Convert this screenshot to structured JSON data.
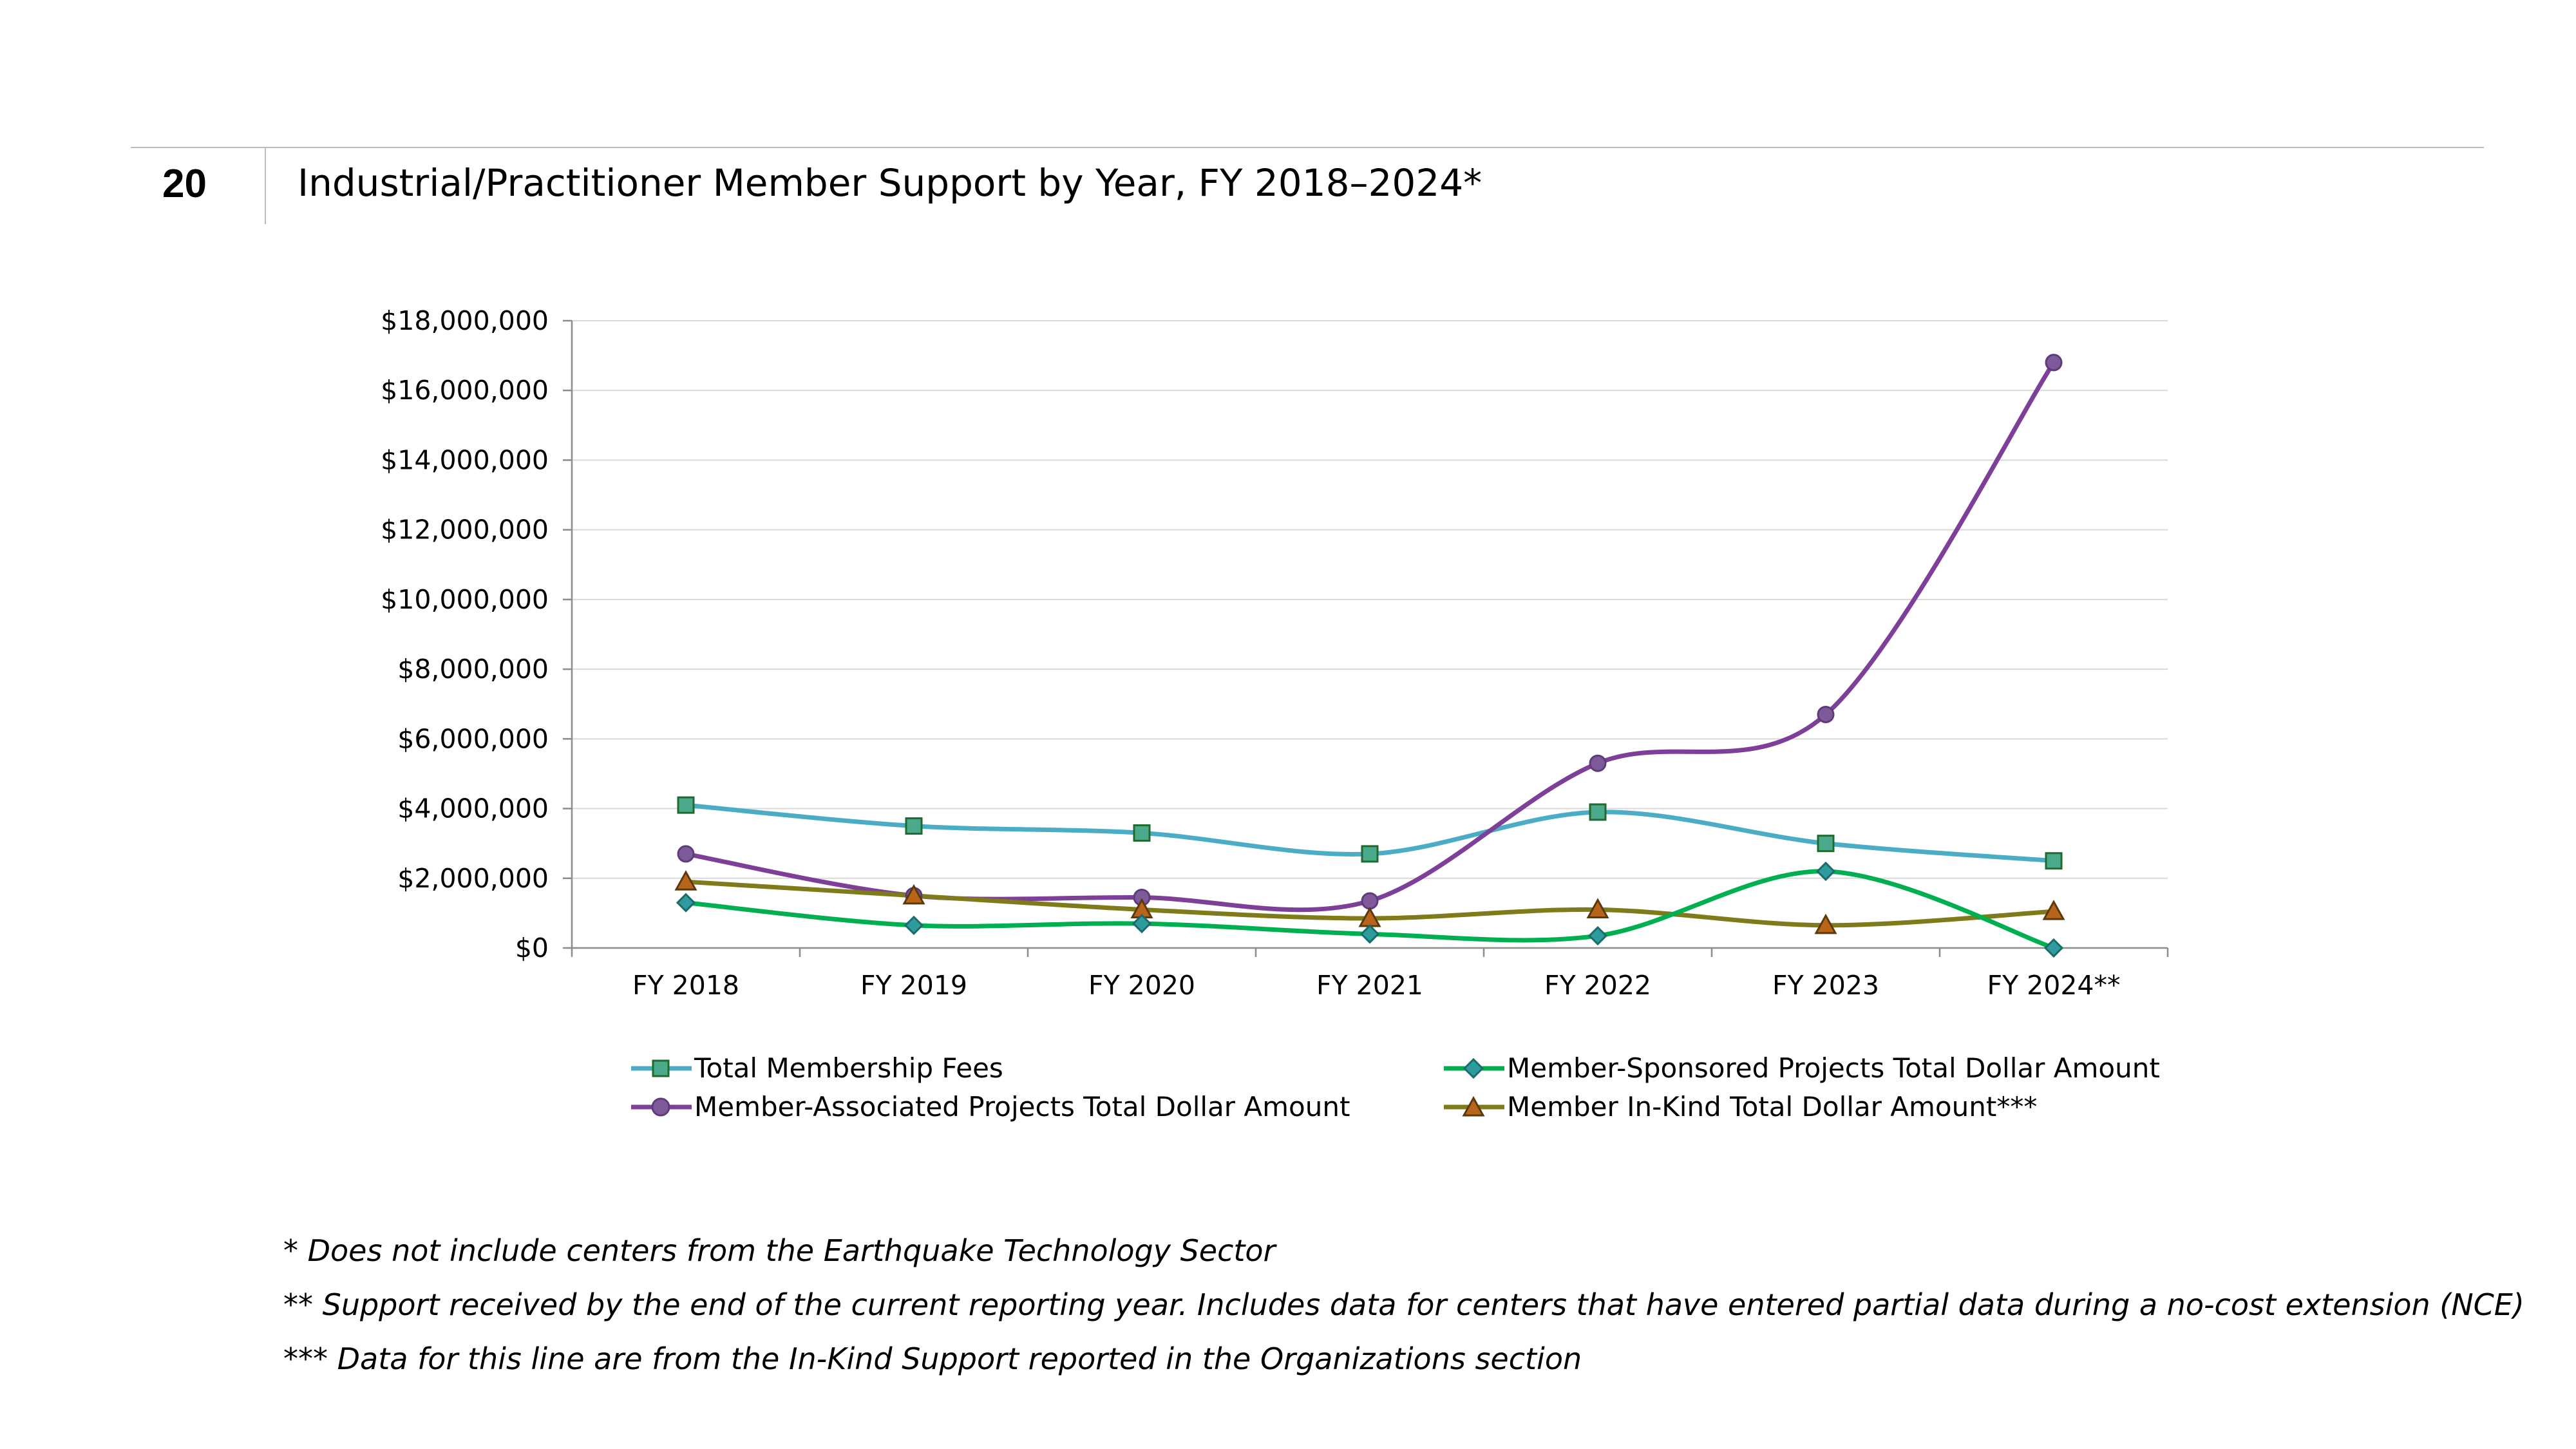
{
  "figure": {
    "number": "20",
    "title": "Industrial/Practitioner Member Support by Year, FY 2018–2024*"
  },
  "chart_data": {
    "type": "line",
    "title": "",
    "xlabel": "",
    "ylabel": "",
    "categories": [
      "FY 2018",
      "FY 2019",
      "FY 2020",
      "FY 2021",
      "FY 2022",
      "FY 2023",
      "FY 2024**"
    ],
    "ylim": [
      0,
      18000000
    ],
    "yticks": [
      0,
      2000000,
      4000000,
      6000000,
      8000000,
      10000000,
      12000000,
      14000000,
      16000000,
      18000000
    ],
    "ytick_labels": [
      "$0",
      "$2,000,000",
      "$4,000,000",
      "$6,000,000",
      "$8,000,000",
      "$10,000,000",
      "$12,000,000",
      "$14,000,000",
      "$16,000,000",
      "$18,000,000"
    ],
    "grid": true,
    "legend_position": "bottom",
    "series": [
      {
        "name": "Total Membership Fees",
        "color": "#4BACC6",
        "marker": "square",
        "marker_fill": "#4BAA8C",
        "marker_stroke": "#1F6B2F",
        "values": [
          4100000,
          3500000,
          3300000,
          2700000,
          3900000,
          3000000,
          2500000
        ]
      },
      {
        "name": "Member-Sponsored Projects Total Dollar Amount",
        "color": "#00B050",
        "marker": "diamond",
        "marker_fill": "#2E9C9C",
        "marker_stroke": "#1A6B6B",
        "values": [
          1300000,
          650000,
          700000,
          400000,
          350000,
          2200000,
          0
        ]
      },
      {
        "name": "Member-Associated Projects Total Dollar Amount",
        "color": "#7E3F98",
        "marker": "circle",
        "marker_fill": "#7E5A9B",
        "marker_stroke": "#5E3C7A",
        "values": [
          2700000,
          1500000,
          1450000,
          1350000,
          5300000,
          6700000,
          16800000
        ]
      },
      {
        "name": "Member In-Kind Total Dollar Amount***",
        "color": "#7F7A1A",
        "marker": "triangle",
        "marker_fill": "#B8651B",
        "marker_stroke": "#5A3A0A",
        "values": [
          1900000,
          1500000,
          1100000,
          850000,
          1100000,
          650000,
          1050000
        ]
      }
    ]
  },
  "footnotes": [
    "* Does not include centers from the Earthquake Technology Sector",
    "** Support received by the end of the current reporting year. Includes data for centers that have entered partial data during a no-cost extension (NCE)",
    "*** Data for this line are from the In-Kind Support reported in the Organizations section"
  ]
}
